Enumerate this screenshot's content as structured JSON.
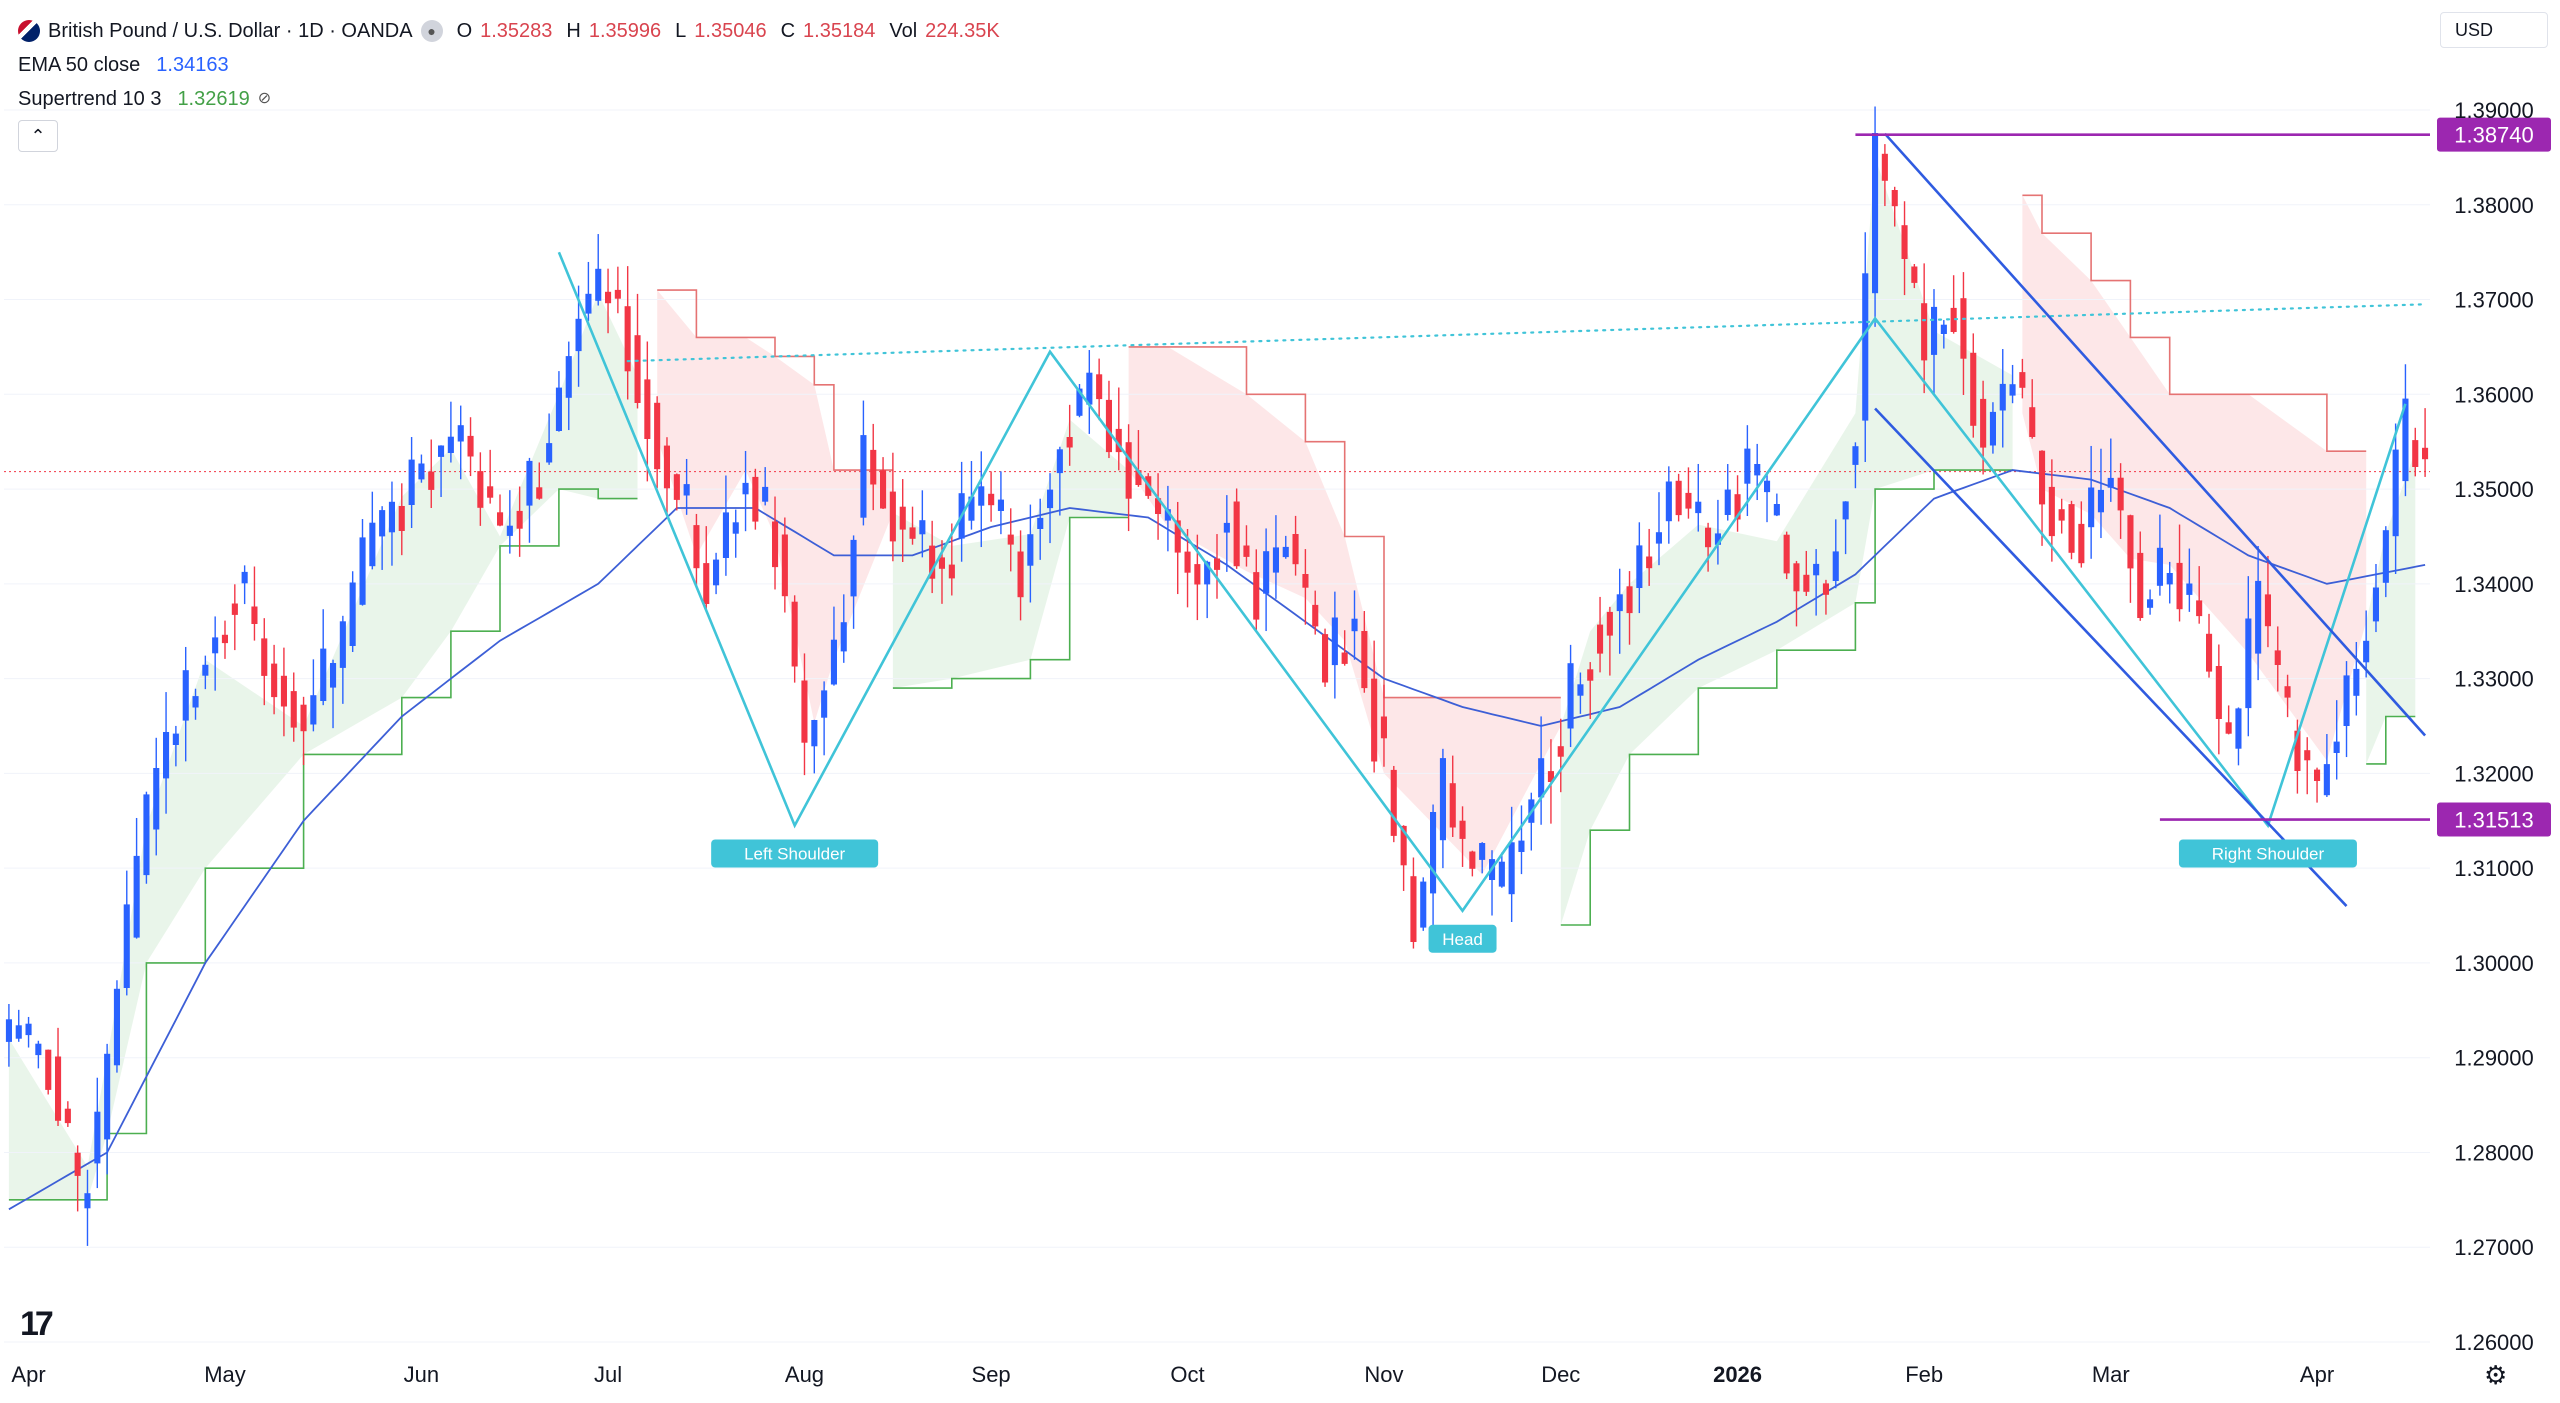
{
  "header": {
    "symbol_title": "British Pound / U.S. Dollar · 1D · OANDA",
    "ohlc": {
      "o_label": "O",
      "o": "1.35283",
      "h_label": "H",
      "h": "1.35996",
      "l_label": "L",
      "l": "1.35046",
      "c_label": "C",
      "c": "1.35184",
      "vol_label": "Vol",
      "vol": "224.35K"
    },
    "ema_label": "EMA 50 close",
    "ema_value": "1.34163",
    "supertrend_label": "Supertrend 10 3",
    "supertrend_value": "1.32619",
    "currency": "USD",
    "collapse_icon": "chevron-up-icon",
    "eye_off_icon": "eye-off-icon"
  },
  "colors": {
    "up": "#2962ff",
    "down": "#f23645",
    "ema": "#3d5fd6",
    "supertrend_up": "#4caf50",
    "supertrend_down": "#e57373",
    "pattern": "#40c4d8",
    "trendline": "#2f5be0",
    "level": "#9c27b0",
    "ema_value": "#2962ff",
    "st_value": "#43a047"
  },
  "chart_data": {
    "type": "candlestick",
    "symbol": "GBPUSD",
    "timeframe": "1D",
    "ylim": [
      1.26,
      1.39
    ],
    "y_ticks": [
      "1.39000",
      "1.38000",
      "1.37000",
      "1.36000",
      "1.35000",
      "1.34000",
      "1.33000",
      "1.32000",
      "1.31000",
      "1.30000",
      "1.29000",
      "1.28000",
      "1.27000",
      "1.26000"
    ],
    "x_ticks": [
      {
        "label": "Apr",
        "index": 2
      },
      {
        "label": "May",
        "index": 22
      },
      {
        "label": "Jun",
        "index": 42
      },
      {
        "label": "Jul",
        "index": 61
      },
      {
        "label": "Aug",
        "index": 81
      },
      {
        "label": "Sep",
        "index": 100
      },
      {
        "label": "Oct",
        "index": 120
      },
      {
        "label": "Nov",
        "index": 140
      },
      {
        "label": "Dec",
        "index": 158
      },
      {
        "label": "2026",
        "index": 176,
        "bold": true
      },
      {
        "label": "Feb",
        "index": 195
      },
      {
        "label": "Mar",
        "index": 214
      },
      {
        "label": "Apr",
        "index": 235
      }
    ],
    "close_path": [
      [
        0,
        1.292
      ],
      [
        4,
        1.29
      ],
      [
        7,
        1.275
      ],
      [
        9,
        1.282
      ],
      [
        11,
        1.298
      ],
      [
        15,
        1.32
      ],
      [
        20,
        1.332
      ],
      [
        23,
        1.34
      ],
      [
        27,
        1.33
      ],
      [
        30,
        1.325
      ],
      [
        34,
        1.334
      ],
      [
        37,
        1.345
      ],
      [
        42,
        1.352
      ],
      [
        46,
        1.355
      ],
      [
        50,
        1.345
      ],
      [
        54,
        1.352
      ],
      [
        58,
        1.368
      ],
      [
        61,
        1.372
      ],
      [
        64,
        1.362
      ],
      [
        67,
        1.352
      ],
      [
        71,
        1.34
      ],
      [
        75,
        1.352
      ],
      [
        78,
        1.345
      ],
      [
        81,
        1.322
      ],
      [
        84,
        1.332
      ],
      [
        87,
        1.355
      ],
      [
        91,
        1.345
      ],
      [
        95,
        1.342
      ],
      [
        99,
        1.35
      ],
      [
        103,
        1.342
      ],
      [
        107,
        1.355
      ],
      [
        110,
        1.362
      ],
      [
        114,
        1.352
      ],
      [
        118,
        1.346
      ],
      [
        121,
        1.34
      ],
      [
        124,
        1.348
      ],
      [
        127,
        1.338
      ],
      [
        130,
        1.345
      ],
      [
        134,
        1.332
      ],
      [
        137,
        1.335
      ],
      [
        140,
        1.32
      ],
      [
        143,
        1.303
      ],
      [
        146,
        1.318
      ],
      [
        149,
        1.31
      ],
      [
        152,
        1.308
      ],
      [
        155,
        1.318
      ],
      [
        158,
        1.325
      ],
      [
        161,
        1.335
      ],
      [
        165,
        1.34
      ],
      [
        169,
        1.35
      ],
      [
        173,
        1.345
      ],
      [
        177,
        1.352
      ],
      [
        181,
        1.342
      ],
      [
        185,
        1.34
      ],
      [
        188,
        1.358
      ],
      [
        190,
        1.385
      ],
      [
        192,
        1.378
      ],
      [
        195,
        1.365
      ],
      [
        198,
        1.37
      ],
      [
        201,
        1.355
      ],
      [
        204,
        1.362
      ],
      [
        207,
        1.35
      ],
      [
        211,
        1.345
      ],
      [
        214,
        1.352
      ],
      [
        217,
        1.338
      ],
      [
        220,
        1.342
      ],
      [
        223,
        1.335
      ],
      [
        226,
        1.322
      ],
      [
        229,
        1.338
      ],
      [
        232,
        1.325
      ],
      [
        235,
        1.318
      ],
      [
        238,
        1.328
      ],
      [
        241,
        1.34
      ],
      [
        244,
        1.356
      ],
      [
        246,
        1.352
      ]
    ],
    "ema50_path": [
      [
        0,
        1.274
      ],
      [
        10,
        1.28
      ],
      [
        20,
        1.3
      ],
      [
        30,
        1.315
      ],
      [
        40,
        1.326
      ],
      [
        50,
        1.334
      ],
      [
        60,
        1.34
      ],
      [
        68,
        1.348
      ],
      [
        76,
        1.348
      ],
      [
        84,
        1.343
      ],
      [
        92,
        1.343
      ],
      [
        100,
        1.346
      ],
      [
        108,
        1.348
      ],
      [
        116,
        1.347
      ],
      [
        124,
        1.342
      ],
      [
        132,
        1.336
      ],
      [
        140,
        1.33
      ],
      [
        148,
        1.327
      ],
      [
        156,
        1.325
      ],
      [
        164,
        1.327
      ],
      [
        172,
        1.332
      ],
      [
        180,
        1.336
      ],
      [
        188,
        1.341
      ],
      [
        196,
        1.349
      ],
      [
        204,
        1.352
      ],
      [
        212,
        1.351
      ],
      [
        220,
        1.348
      ],
      [
        228,
        1.343
      ],
      [
        236,
        1.34
      ],
      [
        246,
        1.342
      ]
    ],
    "supertrend": [
      {
        "trend": "up",
        "points": [
          [
            0,
            1.275
          ],
          [
            8,
            1.275
          ],
          [
            10,
            1.282
          ],
          [
            14,
            1.3
          ],
          [
            20,
            1.31
          ],
          [
            30,
            1.322
          ],
          [
            40,
            1.328
          ],
          [
            45,
            1.335
          ],
          [
            50,
            1.344
          ],
          [
            56,
            1.35
          ],
          [
            60,
            1.349
          ],
          [
            64,
            1.349
          ]
        ]
      },
      {
        "trend": "down",
        "points": [
          [
            66,
            1.371
          ],
          [
            70,
            1.366
          ],
          [
            75,
            1.366
          ],
          [
            78,
            1.364
          ],
          [
            82,
            1.361
          ],
          [
            84,
            1.352
          ],
          [
            90,
            1.352
          ]
        ]
      },
      {
        "trend": "up",
        "points": [
          [
            90,
            1.329
          ],
          [
            96,
            1.33
          ],
          [
            104,
            1.332
          ],
          [
            108,
            1.347
          ],
          [
            114,
            1.347
          ]
        ]
      },
      {
        "trend": "down",
        "points": [
          [
            114,
            1.365
          ],
          [
            118,
            1.365
          ],
          [
            126,
            1.36
          ],
          [
            132,
            1.355
          ],
          [
            136,
            1.345
          ],
          [
            140,
            1.328
          ],
          [
            150,
            1.328
          ],
          [
            158,
            1.328
          ]
        ]
      },
      {
        "trend": "up",
        "points": [
          [
            158,
            1.304
          ],
          [
            161,
            1.314
          ],
          [
            165,
            1.322
          ],
          [
            172,
            1.329
          ],
          [
            180,
            1.333
          ],
          [
            188,
            1.338
          ],
          [
            190,
            1.35
          ],
          [
            196,
            1.352
          ],
          [
            204,
            1.352
          ]
        ]
      },
      {
        "trend": "down",
        "points": [
          [
            205,
            1.381
          ],
          [
            207,
            1.377
          ],
          [
            212,
            1.372
          ],
          [
            216,
            1.366
          ],
          [
            220,
            1.36
          ],
          [
            228,
            1.36
          ],
          [
            236,
            1.354
          ],
          [
            240,
            1.354
          ]
        ]
      },
      {
        "trend": "up",
        "points": [
          [
            240,
            1.321
          ],
          [
            242,
            1.326
          ],
          [
            245,
            1.326
          ]
        ]
      }
    ],
    "neckline": {
      "style": "dotted",
      "points": [
        [
          63,
          1.3635
        ],
        [
          246,
          1.3695
        ]
      ]
    },
    "head_and_shoulders": [
      [
        56,
        1.375
      ],
      [
        80,
        1.3145
      ],
      [
        106,
        1.3645
      ],
      [
        148,
        1.3055
      ],
      [
        190,
        1.368
      ],
      [
        230,
        1.3145
      ],
      [
        244,
        1.359
      ]
    ],
    "channel_lines": [
      {
        "points": [
          [
            191,
            1.3875
          ],
          [
            246,
            1.324
          ]
        ]
      },
      {
        "points": [
          [
            190,
            1.3585
          ],
          [
            238,
            1.306
          ]
        ]
      }
    ],
    "levels": [
      {
        "value": 1.3874,
        "label": "1.38740",
        "start_index": 188
      },
      {
        "value": 1.31513,
        "label": "1.31513",
        "start_index": 219
      }
    ],
    "current_price_line": 1.35184,
    "annotations": [
      {
        "text": "Left Shoulder",
        "index": 80,
        "price": 1.3145
      },
      {
        "text": "Head",
        "index": 148,
        "price": 1.3055
      },
      {
        "text": "Right Shoulder",
        "index": 230,
        "price": 1.3145
      }
    ]
  }
}
